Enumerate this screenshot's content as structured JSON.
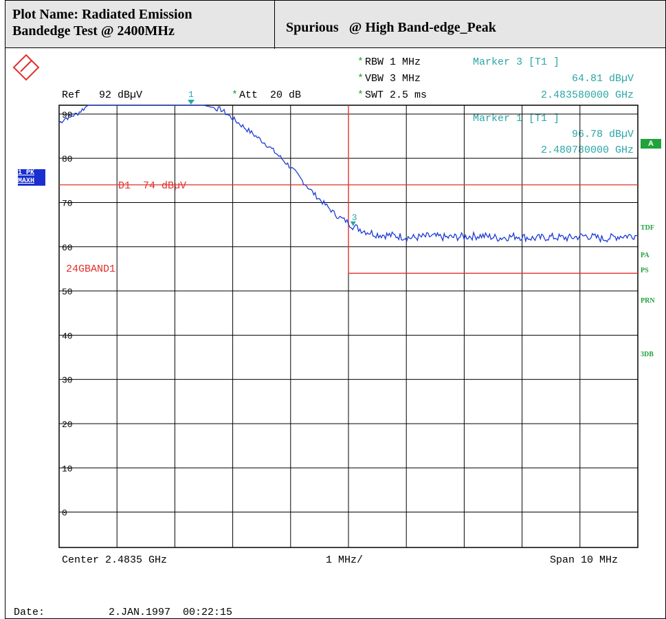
{
  "header": {
    "plot_name_line1": "Plot Name: Radiated Emission",
    "plot_name_line2": "Bandedge Test @ 2400MHz",
    "title_left": "Spurious",
    "title_right": "@ High Band-edge_Peak"
  },
  "settings": {
    "ref": "Ref   92 dBµV",
    "att_star": "*",
    "att": "Att  20 dB",
    "rbw_star": "*",
    "rbw": "RBW 1 MHz",
    "vbw_star": "*",
    "vbw": "VBW 3 MHz",
    "swt_star": "*",
    "swt": "SWT 2.5 ms"
  },
  "markers": [
    {
      "label": "Marker 3 [T1 ]",
      "level": "64.81 dBµV",
      "freq": "2.483580000 GHz",
      "id": "3"
    },
    {
      "label": "Marker 1 [T1 ]",
      "level": "96.78 dBµV",
      "freq": "2.480780000 GHz",
      "id": "1"
    }
  ],
  "side_left": {
    "trace_label": "1 PK",
    "mode_label": "MAXH"
  },
  "side_right": {
    "a": "A",
    "tdf": "TDF",
    "pa": "PA",
    "ps": "PS",
    "prn": "PRN",
    "db": "3DB"
  },
  "limit_labels": {
    "d1": "D1  74 dBµV",
    "band": "24GBAND1"
  },
  "footer": {
    "center": "Center 2.4835 GHz",
    "div": "1 MHz/",
    "span": "Span 10 MHz",
    "date_label": "Date:",
    "date_value": "2.JAN.1997  00:22:15"
  },
  "colors": {
    "trace": "#1c3bd6",
    "limit": "#e0302a",
    "marker": "#2aa6a6",
    "status": "#1fa33a"
  },
  "chart_data": {
    "type": "line",
    "xlabel": "",
    "ylabel": "",
    "y_ticks": [
      90,
      80,
      70,
      60,
      50,
      40,
      30,
      20,
      10,
      0
    ],
    "ylim": [
      -8,
      92
    ],
    "xlim": [
      2.4785,
      2.4885
    ],
    "limit_line_d1": 74,
    "band_limit": {
      "x_start": 2.4835,
      "x_end": 2.4885,
      "level": 54
    },
    "marker_x": [
      2.48078,
      2.48358
    ],
    "series": [
      {
        "x": [
          2.4785,
          2.4786,
          2.4788,
          2.479,
          2.4795,
          2.48,
          2.4805,
          2.481,
          2.4813,
          2.4815,
          2.4817,
          2.4819,
          2.4821,
          2.4823,
          2.4825,
          2.4827,
          2.4829,
          2.4831,
          2.4833,
          2.4835,
          2.4836,
          2.4838,
          2.484,
          2.4843,
          2.4846,
          2.4849,
          2.4852,
          2.4855,
          2.4858,
          2.4861,
          2.4864,
          2.4867,
          2.487,
          2.4873,
          2.4876,
          2.4879,
          2.4882,
          2.4885
        ],
        "y": [
          88,
          89,
          90,
          92,
          92,
          92,
          92,
          92,
          91,
          89,
          87,
          85,
          83,
          80.5,
          78,
          75,
          72,
          69.5,
          67,
          65.5,
          64.5,
          63.5,
          62.8,
          62.5,
          62,
          62.4,
          62.1,
          62.3,
          62.5,
          62,
          62.4,
          61.9,
          62.2,
          62,
          62.5,
          61.8,
          62.4,
          62.6
        ]
      }
    ]
  }
}
